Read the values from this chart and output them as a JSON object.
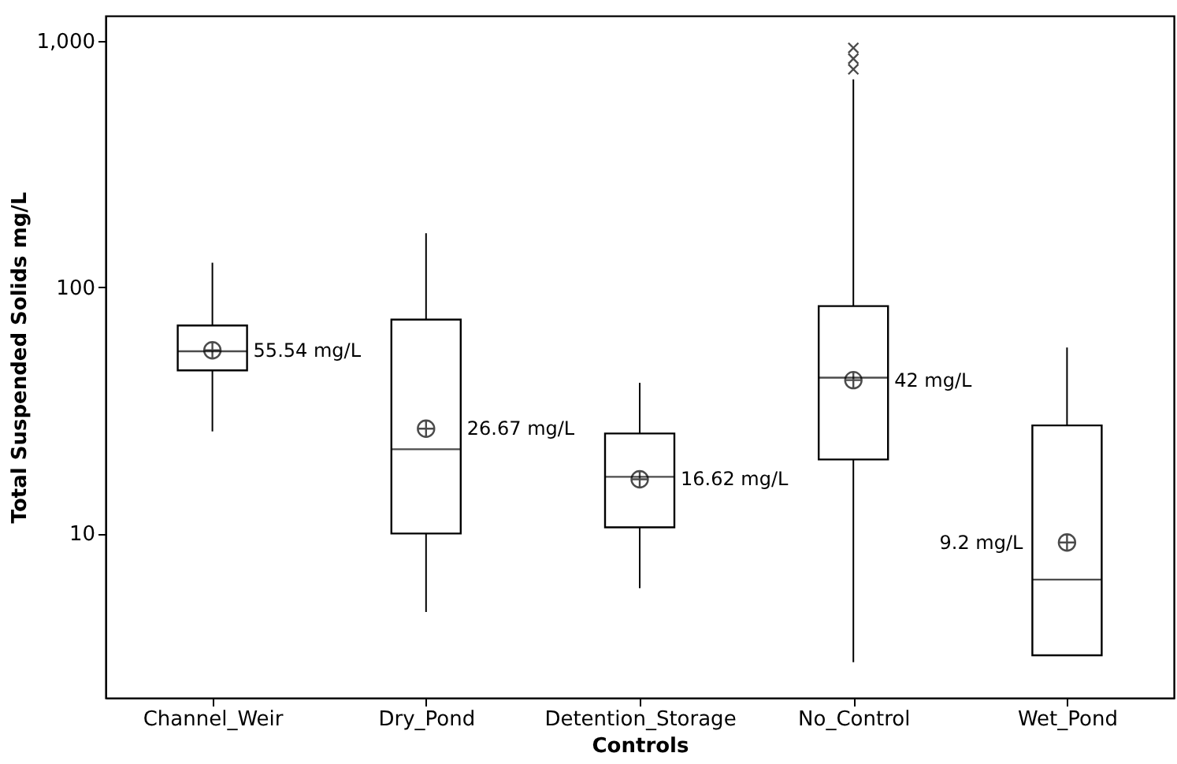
{
  "chart_data": {
    "type": "box",
    "xlabel": "Controls",
    "ylabel": "Total Suspended Solids mg/L",
    "categories": [
      "Channel_Weir",
      "Dry_Pond",
      "Detention_Storage",
      "No_Control",
      "Wet_Pond"
    ],
    "boxes": [
      {
        "low": 26,
        "q1": 46,
        "median": 55,
        "q3": 70,
        "high": 126,
        "mean": 55.54
      },
      {
        "low": 4.8,
        "q1": 10,
        "median": 22,
        "q3": 74,
        "high": 166,
        "mean": 26.67
      },
      {
        "low": 6.0,
        "q1": 10.6,
        "median": 17,
        "q3": 25.5,
        "high": 41,
        "mean": 16.62
      },
      {
        "low": 3.0,
        "q1": 20,
        "median": 43,
        "q3": 84,
        "high": 700,
        "mean": 42,
        "outliers": [
          770,
          850,
          940
        ]
      },
      {
        "low": 3.2,
        "q1": 3.2,
        "median": 6.5,
        "q3": 27.5,
        "high": 57,
        "mean": 9.2
      }
    ],
    "annotations": [
      "55.54 mg/L",
      "26.67 mg/L",
      "16.62 mg/L",
      "42 mg/L",
      "9.2 mg/L"
    ],
    "log": true,
    "ylim": [
      2.15,
      1270
    ],
    "yticks": [
      10,
      100,
      {
        "value": 1000,
        "label": "1,000"
      }
    ],
    "grid": false
  }
}
